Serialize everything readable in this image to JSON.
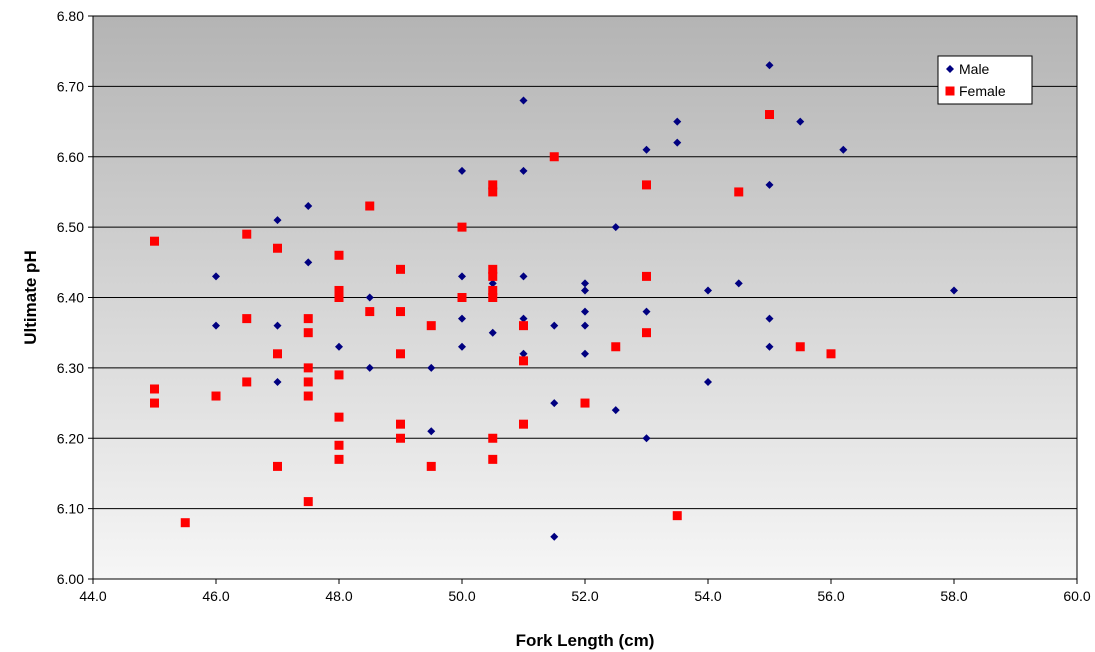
{
  "chart_data": {
    "type": "scatter",
    "xlabel": "Fork Length (cm)",
    "ylabel": "Ultimate pH",
    "xlim": [
      44.0,
      60.0
    ],
    "ylim": [
      6.0,
      6.8
    ],
    "x_ticks": [
      "44.0",
      "46.0",
      "48.0",
      "50.0",
      "52.0",
      "54.0",
      "56.0",
      "58.0",
      "60.0"
    ],
    "y_ticks": [
      "6.00",
      "6.10",
      "6.20",
      "6.30",
      "6.40",
      "6.50",
      "6.60",
      "6.70",
      "6.80"
    ],
    "grid": "horizontal",
    "background": "gradient-gray",
    "legend_position": "top-right",
    "series": [
      {
        "name": "Male",
        "color": "#000080",
        "marker": "diamond",
        "points": [
          [
            46.0,
            6.43
          ],
          [
            46.0,
            6.36
          ],
          [
            47.0,
            6.51
          ],
          [
            47.0,
            6.36
          ],
          [
            47.0,
            6.28
          ],
          [
            47.5,
            6.53
          ],
          [
            47.5,
            6.45
          ],
          [
            48.0,
            6.33
          ],
          [
            48.5,
            6.4
          ],
          [
            48.5,
            6.3
          ],
          [
            49.5,
            6.3
          ],
          [
            49.5,
            6.21
          ],
          [
            50.0,
            6.58
          ],
          [
            50.0,
            6.43
          ],
          [
            50.0,
            6.37
          ],
          [
            50.0,
            6.33
          ],
          [
            50.5,
            6.42
          ],
          [
            50.5,
            6.35
          ],
          [
            51.0,
            6.68
          ],
          [
            51.0,
            6.58
          ],
          [
            51.0,
            6.43
          ],
          [
            51.0,
            6.37
          ],
          [
            51.0,
            6.32
          ],
          [
            51.5,
            6.36
          ],
          [
            51.5,
            6.25
          ],
          [
            51.5,
            6.06
          ],
          [
            52.0,
            6.42
          ],
          [
            52.0,
            6.41
          ],
          [
            52.0,
            6.38
          ],
          [
            52.0,
            6.36
          ],
          [
            52.0,
            6.32
          ],
          [
            52.5,
            6.5
          ],
          [
            52.5,
            6.24
          ],
          [
            53.0,
            6.61
          ],
          [
            53.0,
            6.38
          ],
          [
            53.0,
            6.2
          ],
          [
            53.5,
            6.65
          ],
          [
            53.5,
            6.62
          ],
          [
            54.0,
            6.41
          ],
          [
            54.0,
            6.28
          ],
          [
            54.5,
            6.42
          ],
          [
            55.0,
            6.73
          ],
          [
            55.0,
            6.56
          ],
          [
            55.0,
            6.37
          ],
          [
            55.0,
            6.33
          ],
          [
            55.5,
            6.65
          ],
          [
            56.2,
            6.61
          ],
          [
            58.0,
            6.41
          ]
        ]
      },
      {
        "name": "Female",
        "color": "#ff0000",
        "marker": "square",
        "points": [
          [
            45.0,
            6.48
          ],
          [
            45.0,
            6.27
          ],
          [
            45.0,
            6.25
          ],
          [
            45.5,
            6.08
          ],
          [
            46.0,
            6.26
          ],
          [
            46.5,
            6.49
          ],
          [
            46.5,
            6.37
          ],
          [
            46.5,
            6.28
          ],
          [
            47.0,
            6.47
          ],
          [
            47.0,
            6.32
          ],
          [
            47.0,
            6.16
          ],
          [
            47.5,
            6.37
          ],
          [
            47.5,
            6.35
          ],
          [
            47.5,
            6.3
          ],
          [
            47.5,
            6.28
          ],
          [
            47.5,
            6.26
          ],
          [
            47.5,
            6.11
          ],
          [
            48.0,
            6.46
          ],
          [
            48.0,
            6.41
          ],
          [
            48.0,
            6.4
          ],
          [
            48.0,
            6.29
          ],
          [
            48.0,
            6.23
          ],
          [
            48.0,
            6.19
          ],
          [
            48.0,
            6.17
          ],
          [
            48.5,
            6.53
          ],
          [
            48.5,
            6.38
          ],
          [
            49.0,
            6.44
          ],
          [
            49.0,
            6.38
          ],
          [
            49.0,
            6.32
          ],
          [
            49.0,
            6.22
          ],
          [
            49.0,
            6.2
          ],
          [
            49.5,
            6.36
          ],
          [
            49.5,
            6.16
          ],
          [
            50.0,
            6.5
          ],
          [
            50.0,
            6.4
          ],
          [
            50.5,
            6.56
          ],
          [
            50.5,
            6.55
          ],
          [
            50.5,
            6.44
          ],
          [
            50.5,
            6.43
          ],
          [
            50.5,
            6.41
          ],
          [
            50.5,
            6.4
          ],
          [
            50.5,
            6.2
          ],
          [
            50.5,
            6.17
          ],
          [
            51.0,
            6.36
          ],
          [
            51.0,
            6.31
          ],
          [
            51.0,
            6.22
          ],
          [
            51.5,
            6.6
          ],
          [
            52.0,
            6.25
          ],
          [
            52.5,
            6.33
          ],
          [
            53.0,
            6.56
          ],
          [
            53.0,
            6.43
          ],
          [
            53.0,
            6.35
          ],
          [
            53.5,
            6.09
          ],
          [
            54.5,
            6.55
          ],
          [
            55.0,
            6.66
          ],
          [
            55.5,
            6.33
          ],
          [
            56.0,
            6.32
          ]
        ]
      }
    ]
  }
}
